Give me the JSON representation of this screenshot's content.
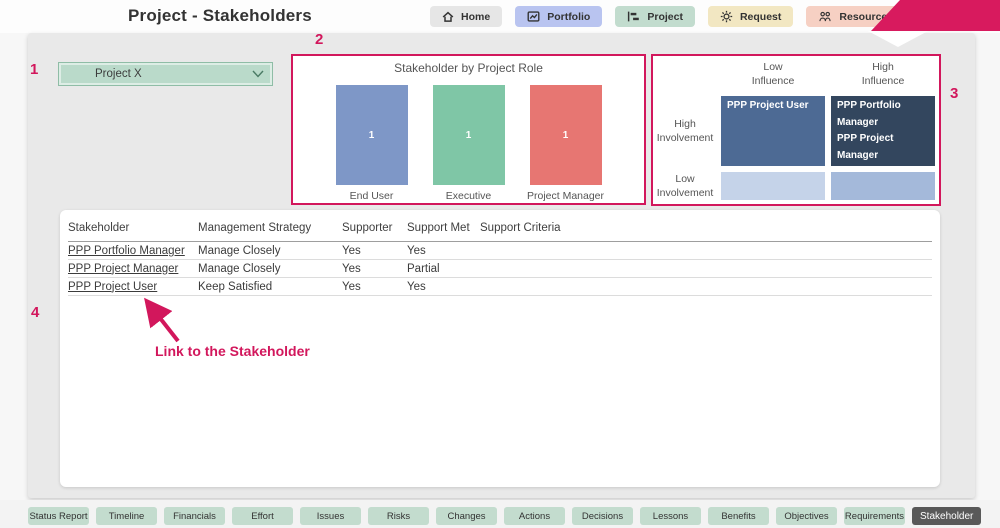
{
  "header": {
    "title": "Project - Stakeholders",
    "nav": [
      {
        "label": "Home",
        "icon": "home-icon",
        "bg": "#e6e6e6"
      },
      {
        "label": "Portfolio",
        "icon": "portfolio-icon",
        "bg": "#b9c4f0"
      },
      {
        "label": "Project",
        "icon": "project-icon",
        "bg": "#c2dcce"
      },
      {
        "label": "Request",
        "icon": "request-icon",
        "bg": "#f2e7c2"
      },
      {
        "label": "Resource",
        "icon": "resource-icon",
        "bg": "#f6d0c3"
      }
    ],
    "ribbon_color": "#d81a5e"
  },
  "filter": {
    "selected_project": "Project X"
  },
  "annotations": {
    "color": "#d2175c",
    "marker_1": "1",
    "marker_2": "2",
    "marker_3": "3",
    "marker_4": "4",
    "arrow_label": "Link to the Stakeholder"
  },
  "chart_data": [
    {
      "type": "bar",
      "title": "Stakeholder by Project Role",
      "categories": [
        "End User",
        "Executive",
        "Project Manager"
      ],
      "values": [
        1,
        1,
        1
      ],
      "bar_colors": [
        "#7e97c7",
        "#7fc6a6",
        "#e77672"
      ],
      "ylim": [
        0,
        1
      ],
      "data_labels": true,
      "legend": false
    },
    {
      "type": "heatmap",
      "columns": [
        "Low Influence",
        "High Influence"
      ],
      "rows": [
        "High Involvement",
        "Low Involvement"
      ],
      "cells": [
        {
          "row": "High Involvement",
          "col": "Low Influence",
          "stakeholders": [
            "PPP Project User"
          ],
          "bg": "#4d6a94"
        },
        {
          "row": "High Involvement",
          "col": "High Influence",
          "stakeholders": [
            "PPP Portfolio Manager",
            "PPP Project Manager"
          ],
          "bg": "#33465e"
        },
        {
          "row": "Low Involvement",
          "col": "Low Influence",
          "stakeholders": [],
          "bg": "#c5d3e9"
        },
        {
          "row": "Low Involvement",
          "col": "High Influence",
          "stakeholders": [],
          "bg": "#a4b9da"
        }
      ]
    }
  ],
  "table": {
    "columns": [
      "Stakeholder",
      "Management Strategy",
      "Supporter",
      "Support Met",
      "Support Criteria"
    ],
    "rows": [
      {
        "stakeholder": "PPP Portfolio Manager",
        "management_strategy": "Manage Closely",
        "supporter": "Yes",
        "support_met": "Yes",
        "support_criteria": ""
      },
      {
        "stakeholder": "PPP Project Manager",
        "management_strategy": "Manage Closely",
        "supporter": "Yes",
        "support_met": "Partial",
        "support_criteria": ""
      },
      {
        "stakeholder": "PPP Project User",
        "management_strategy": "Keep Satisfied",
        "supporter": "Yes",
        "support_met": "Yes",
        "support_criteria": ""
      }
    ]
  },
  "tabs": {
    "active": "Stakeholder",
    "inactive_bg": "#c3dcce",
    "active_bg": "#595959",
    "items": [
      "Status Report",
      "Timeline",
      "Financials",
      "Effort",
      "Issues",
      "Risks",
      "Changes",
      "Actions",
      "Decisions",
      "Lessons",
      "Benefits",
      "Objectives",
      "Requirements",
      "Stakeholder"
    ]
  }
}
